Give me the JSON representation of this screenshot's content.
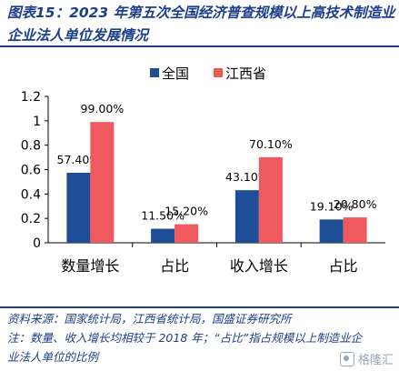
{
  "title": {
    "line1": "图表15：2023 年第五次全国经济普查规模以上高技术制造业",
    "line2": "企业法人单位发展情况"
  },
  "chart_data": {
    "type": "bar",
    "categories": [
      "数量增长",
      "占比",
      "收入增长",
      "占比"
    ],
    "series": [
      {
        "name": "全国",
        "values": [
          0.574,
          0.115,
          0.431,
          0.191
        ],
        "labels": [
          "57.40%",
          "11.50%",
          "43.10%",
          "19.10%"
        ],
        "color": "#1f4e99"
      },
      {
        "name": "江西省",
        "values": [
          0.99,
          0.152,
          0.701,
          0.208
        ],
        "labels": [
          "99.00%",
          "15.20%",
          "70.10%",
          "20.80%"
        ],
        "color": "#f0595d"
      }
    ],
    "yticks": [
      "0",
      "0.2",
      "0.4",
      "0.6",
      "0.8",
      "1",
      "1.2"
    ],
    "ylim": [
      0,
      1.2
    ],
    "legend": "top-center",
    "grid": false
  },
  "notes": {
    "source": "资料来源：国家统计局，江西省统计局，国盛证券研究所",
    "note_line1": "注：数量、收入增长均相较于 2018 年；“占比”指占规模以上制造业企",
    "note_line2": "业法人单位的比例"
  },
  "watermark": "格隆汇"
}
